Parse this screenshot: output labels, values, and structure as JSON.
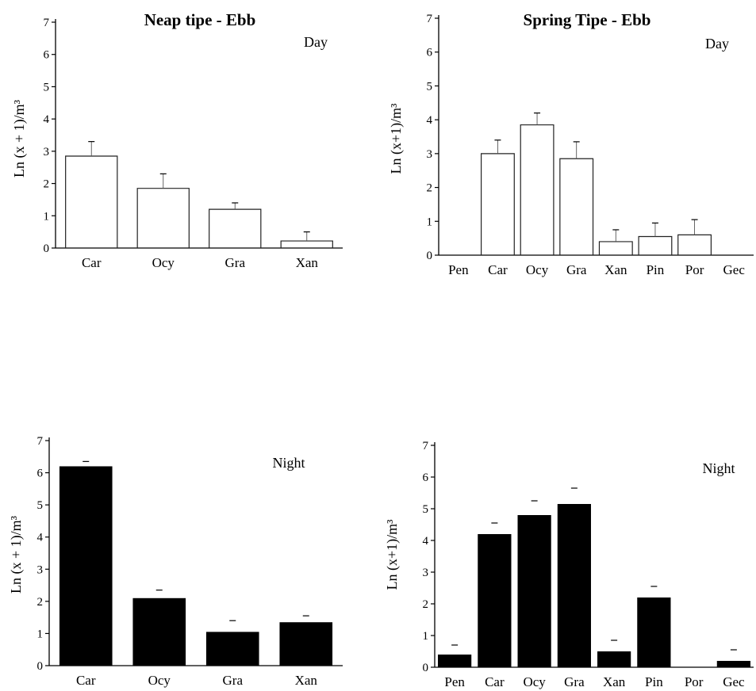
{
  "chart_data": [
    {
      "type": "bar",
      "style": "outline",
      "title": "Neap tipe - Ebb",
      "period": "Day",
      "ylabel": "Ln (x + 1)/m³",
      "xlabel": "",
      "ylim": [
        0,
        7
      ],
      "yticks": [
        "0",
        "1",
        "2",
        "3",
        "4",
        "5",
        "6",
        "7"
      ],
      "categories": [
        "Car",
        "Ocy",
        "Gra",
        "Xan"
      ],
      "values": [
        2.85,
        1.85,
        1.2,
        0.22
      ],
      "error_tops": [
        3.3,
        2.3,
        1.4,
        0.5
      ]
    },
    {
      "type": "bar",
      "style": "outline",
      "title": "Spring Tipe - Ebb",
      "period": "Day",
      "ylabel": "Ln (x+1)/m³",
      "xlabel": "",
      "ylim": [
        0,
        7
      ],
      "yticks": [
        "0",
        "1",
        "2",
        "3",
        "4",
        "5",
        "6",
        "7"
      ],
      "categories": [
        "Pen",
        "Car",
        "Ocy",
        "Gra",
        "Xan",
        "Pin",
        "Por",
        "Gec"
      ],
      "values": [
        0,
        3.0,
        3.85,
        2.85,
        0.4,
        0.55,
        0.6,
        0
      ],
      "error_tops": [
        null,
        3.4,
        4.2,
        3.35,
        0.75,
        0.95,
        1.05,
        null
      ]
    },
    {
      "type": "bar",
      "style": "filled",
      "title": "",
      "period": "Night",
      "ylabel": "Ln (x + 1)/m³",
      "xlabel": "",
      "ylim": [
        0,
        7
      ],
      "yticks": [
        "0",
        "1",
        "2",
        "3",
        "4",
        "5",
        "6",
        "7"
      ],
      "categories": [
        "Car",
        "Ocy",
        "Gra",
        "Xan"
      ],
      "values": [
        6.2,
        2.1,
        1.05,
        1.35
      ],
      "error_tops": [
        6.35,
        2.35,
        1.4,
        1.55
      ]
    },
    {
      "type": "bar",
      "style": "filled",
      "title": "",
      "period": "Night",
      "ylabel": "Ln (x+1)/m³",
      "xlabel": "",
      "ylim": [
        0,
        7
      ],
      "yticks": [
        "0",
        "1",
        "2",
        "3",
        "4",
        "5",
        "6",
        "7"
      ],
      "categories": [
        "Pen",
        "Car",
        "Ocy",
        "Gra",
        "Xan",
        "Pin",
        "Por",
        "Gec"
      ],
      "values": [
        0.4,
        4.2,
        4.8,
        5.15,
        0.5,
        2.2,
        0,
        0.2
      ],
      "error_tops": [
        0.7,
        4.55,
        5.25,
        5.65,
        0.85,
        2.55,
        null,
        0.55
      ]
    }
  ]
}
